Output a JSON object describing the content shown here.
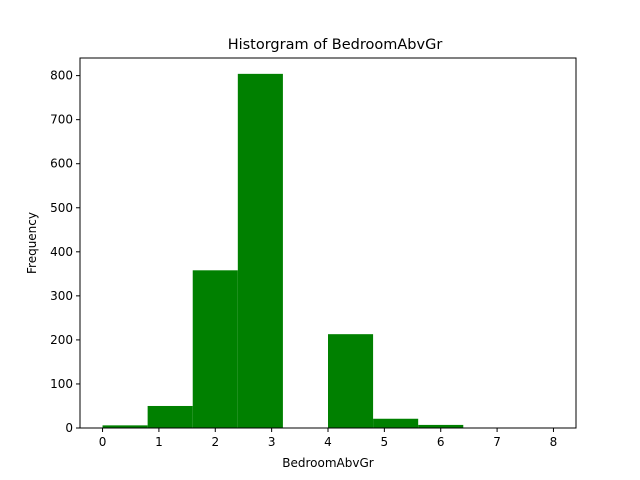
{
  "chart_data": {
    "type": "bar",
    "title": "Historgram of BedroomAbvGr",
    "xlabel": "BedroomAbvGr",
    "ylabel": "Frequency",
    "xlim": [
      -0.4,
      8.4
    ],
    "ylim": [
      0,
      840
    ],
    "xticks": [
      0,
      1,
      2,
      3,
      4,
      5,
      6,
      7,
      8
    ],
    "yticks": [
      0,
      100,
      200,
      300,
      400,
      500,
      600,
      700,
      800
    ],
    "bins": [
      {
        "x0": 0.0,
        "x1": 0.8,
        "value": 6
      },
      {
        "x0": 0.8,
        "x1": 1.6,
        "value": 50
      },
      {
        "x0": 1.6,
        "x1": 2.4,
        "value": 358
      },
      {
        "x0": 2.4,
        "x1": 3.2,
        "value": 804
      },
      {
        "x0": 3.2,
        "x1": 4.0,
        "value": 0
      },
      {
        "x0": 4.0,
        "x1": 4.8,
        "value": 213
      },
      {
        "x0": 4.8,
        "x1": 5.6,
        "value": 21
      },
      {
        "x0": 5.6,
        "x1": 6.4,
        "value": 7
      },
      {
        "x0": 6.4,
        "x1": 7.2,
        "value": 0
      },
      {
        "x0": 7.2,
        "x1": 8.0,
        "value": 1
      }
    ],
    "bar_color": "#008000",
    "grid": false,
    "legend": false
  }
}
